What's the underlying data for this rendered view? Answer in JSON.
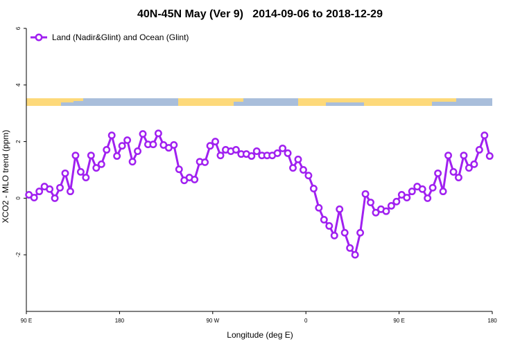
{
  "chart_data": {
    "type": "line",
    "title": "40N-45N May (Ver 9)   2014-09-06 to 2018-12-29",
    "x_label": "Longitude (deg E)",
    "y_label": "XCO2 - MLO trend (ppm)",
    "x": [
      92.5,
      97.5,
      102.5,
      107.5,
      112.5,
      117.5,
      122.5,
      127.5,
      132.5,
      137.5,
      142.5,
      147.5,
      152.5,
      157.5,
      162.5,
      167.5,
      172.5,
      177.5,
      182.5,
      187.5,
      192.5,
      197.5,
      202.5,
      207.5,
      212.5,
      217.5,
      222.5,
      227.5,
      232.5,
      237.5,
      242.5,
      247.5,
      252.5,
      257.5,
      262.5,
      267.5,
      272.5,
      277.5,
      282.5,
      287.5,
      292.5,
      297.5,
      302.5,
      307.5,
      312.5,
      317.5,
      322.5,
      327.5,
      332.5,
      337.5,
      342.5,
      347.5,
      352.5,
      357.5,
      362.5,
      367.5,
      372.5,
      377.5,
      382.5,
      387.5,
      392.5,
      397.5,
      402.5,
      407.5,
      412.5,
      417.5,
      422.5,
      427.5,
      432.5,
      437.5,
      442.5,
      447.5,
      452.5,
      457.5,
      462.5,
      467.5,
      472.5,
      477.5,
      482.5,
      487.5,
      492.5,
      497.5,
      502.5,
      507.5,
      512.5,
      517.5,
      522.5,
      527.5,
      532.5,
      537.5
    ],
    "series": [
      {
        "name": "Land (Nadir&Glint) and Ocean (Glint)",
        "color": "#a020f0",
        "values": [
          0.12,
          0.02,
          0.24,
          0.41,
          0.32,
          0.0,
          0.37,
          0.88,
          0.24,
          1.51,
          0.93,
          0.73,
          1.51,
          1.07,
          1.2,
          1.71,
          2.22,
          1.49,
          1.85,
          2.05,
          1.29,
          1.66,
          2.27,
          1.9,
          1.9,
          2.29,
          1.88,
          1.78,
          1.88,
          1.02,
          0.63,
          0.73,
          0.66,
          1.29,
          1.27,
          1.85,
          2.0,
          1.51,
          1.71,
          1.66,
          1.71,
          1.56,
          1.56,
          1.49,
          1.66,
          1.51,
          1.51,
          1.51,
          1.59,
          1.76,
          1.59,
          1.07,
          1.37,
          1.0,
          0.8,
          0.34,
          -0.34,
          -0.76,
          -0.98,
          -1.32,
          -0.39,
          -1.22,
          -1.76,
          -2.0,
          -1.22,
          0.15,
          -0.15,
          -0.51,
          -0.39,
          -0.46,
          -0.27,
          -0.12,
          0.12,
          0.02,
          0.24,
          0.41,
          0.32,
          0.0,
          0.37,
          0.88,
          0.24,
          1.51,
          0.93,
          0.73,
          1.51,
          1.07,
          1.2,
          1.71,
          2.22,
          1.49
        ]
      }
    ],
    "xlim": [
      90,
      540
    ],
    "xticks": [
      {
        "value": 90,
        "label": "90 E"
      },
      {
        "value": 180,
        "label": "180"
      },
      {
        "value": 270,
        "label": "90 W"
      },
      {
        "value": 360,
        "label": "0"
      },
      {
        "value": 450,
        "label": "90 E"
      },
      {
        "value": 540,
        "label": "180"
      }
    ],
    "ylim": [
      -4,
      6
    ],
    "yticks": [
      -2,
      0,
      2,
      4,
      6
    ],
    "legend": "top-left"
  }
}
